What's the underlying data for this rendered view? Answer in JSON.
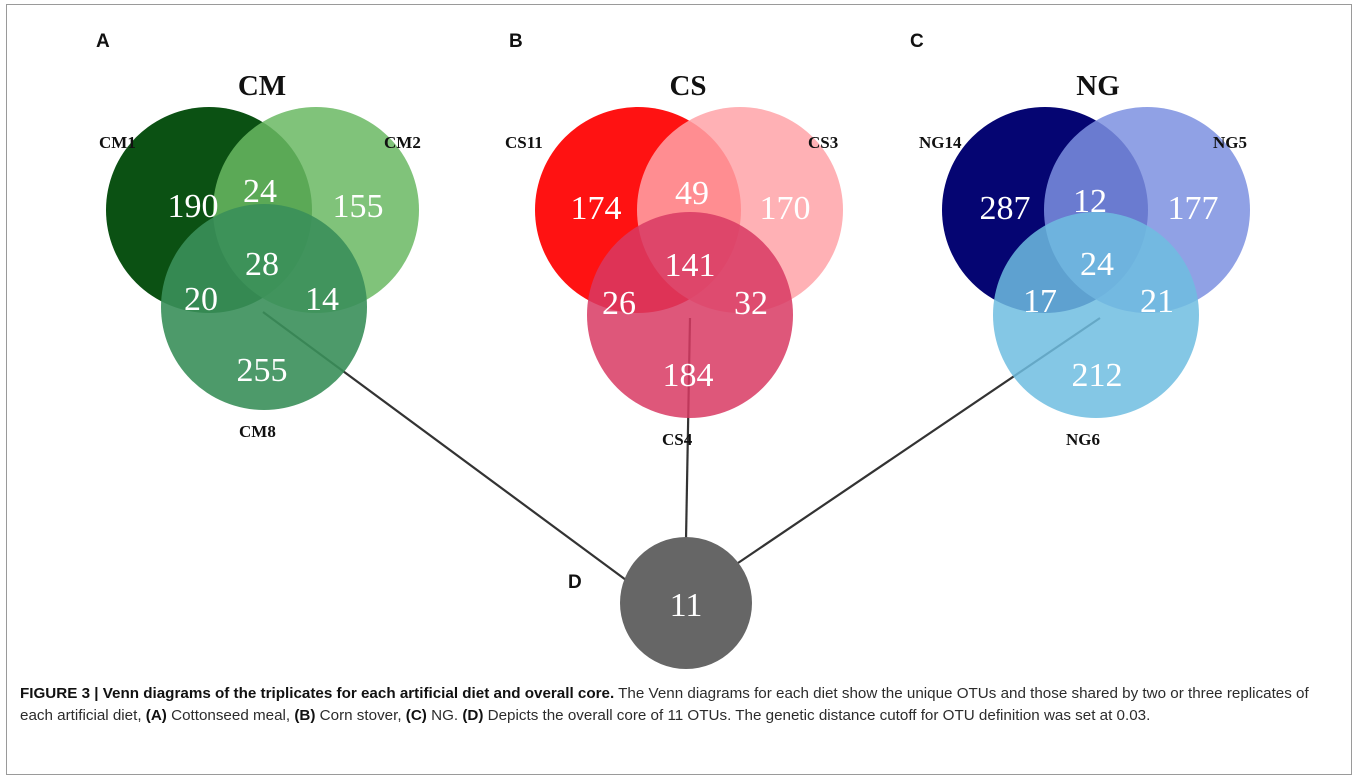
{
  "figure": {
    "panels": [
      {
        "letter": "A",
        "title": "CM",
        "labels": [
          "CM1",
          "CM2",
          "CM8"
        ],
        "colors": [
          "#034b0b",
          "#6ab863",
          "#3a8f5a"
        ],
        "counts": {
          "only1": "190",
          "only2": "155",
          "only3": "255",
          "c12": "24",
          "c13": "20",
          "c23": "14",
          "c123": "28"
        }
      },
      {
        "letter": "B",
        "title": "CS",
        "labels": [
          "CS11",
          "CS3",
          "CS4"
        ],
        "colors": [
          "#ff0a0a",
          "#ffa3a8",
          "#d83a63"
        ],
        "counts": {
          "only1": "174",
          "only2": "170",
          "only3": "184",
          "c12": "49",
          "c13": "26",
          "c23": "32",
          "c123": "141"
        }
      },
      {
        "letter": "C",
        "title": "NG",
        "labels": [
          "NG14",
          "NG5",
          "NG6"
        ],
        "colors": [
          "#00006f",
          "#7d90e0",
          "#6fbde0"
        ],
        "counts": {
          "only1": "287",
          "only2": "177",
          "only3": "212",
          "c12": "12",
          "c13": "17",
          "c23": "21",
          "c123": "24"
        }
      }
    ],
    "core": {
      "letter": "D",
      "value": "11",
      "color": "#666666"
    }
  },
  "caption": {
    "label": "FIGURE 3 | Venn diagrams of the triplicates for each artificial diet and overall core.",
    "text1": " The Venn diagrams for each diet show the unique OTUs and those shared by two or three replicates of each artificial diet, ",
    "a": "(A)",
    "a_text": " Cottonseed meal, ",
    "b": "(B)",
    "b_text": " Corn stover, ",
    "c": "(C)",
    "c_text": " NG. ",
    "d": "(D)",
    "d_text": " Depicts the overall core of 11 OTUs. The genetic distance cutoff for OTU definition was set at 0.03."
  }
}
